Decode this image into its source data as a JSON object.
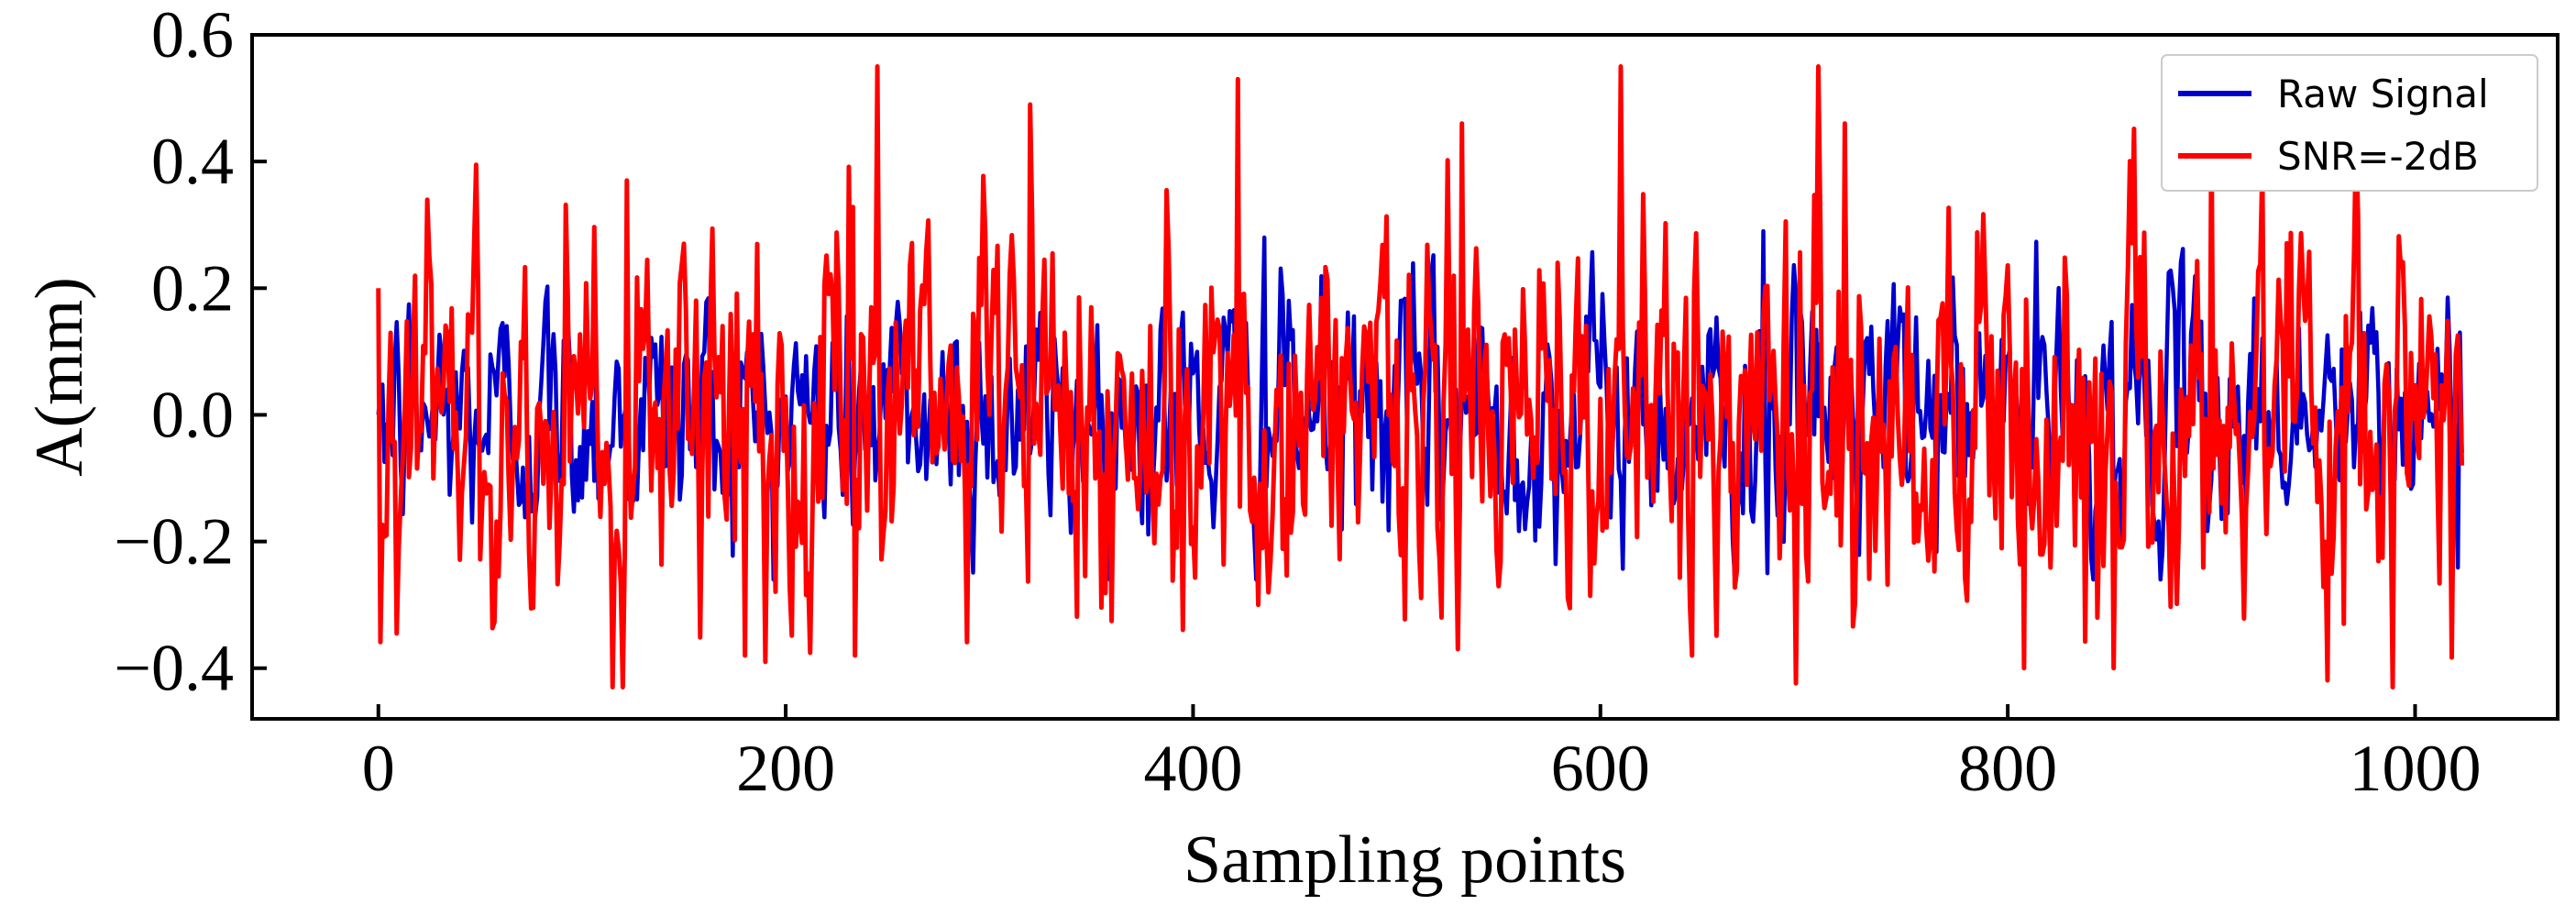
{
  "chart_data": {
    "type": "line",
    "title": "",
    "xlabel": "Sampling points",
    "ylabel": "A(mm)",
    "xlim": [
      -62,
      1070
    ],
    "ylim": [
      -0.48,
      0.6
    ],
    "x_ticks": [
      0,
      200,
      400,
      600,
      800,
      1000
    ],
    "x_tick_labels": [
      "0",
      "200",
      "400",
      "600",
      "800",
      "1000"
    ],
    "y_ticks": [
      -0.4,
      -0.2,
      0.0,
      0.2,
      0.4,
      0.6
    ],
    "y_tick_labels": [
      "−0.4",
      "−0.2",
      "0.0",
      "0.2",
      "0.4",
      "0.6"
    ],
    "ticks_direction": "in",
    "grid": false,
    "legend_position": "top-right",
    "series": [
      {
        "name": "Raw Signal",
        "color": "#0000cc",
        "n_points": 1024,
        "approx_range": [
          -0.26,
          0.3
        ],
        "notable_points": [
          [
            0,
            0.0
          ],
          [
            435,
            0.28
          ],
          [
            680,
            0.29
          ],
          [
            682,
            -0.25
          ],
          [
            1022,
            0.13
          ],
          [
            1023,
            -0.06
          ]
        ]
      },
      {
        "name": "SNR=-2dB",
        "color": "#ff0000",
        "n_points": 1024,
        "approx_range": [
          -0.43,
          0.55
        ],
        "notable_points": [
          [
            0,
            0.2
          ],
          [
            120,
            -0.43
          ],
          [
            122,
            0.37
          ],
          [
            180,
            -0.38
          ],
          [
            190,
            -0.39
          ],
          [
            234,
            -0.38
          ],
          [
            245,
            0.55
          ],
          [
            320,
            0.49
          ],
          [
            422,
            0.53
          ],
          [
            432,
            -0.3
          ],
          [
            530,
            -0.37
          ],
          [
            532,
            0.46
          ],
          [
            645,
            -0.38
          ],
          [
            720,
            0.46
          ],
          [
            808,
            -0.4
          ],
          [
            852,
            -0.4
          ],
          [
            900,
            0.47
          ],
          [
            965,
            -0.33
          ],
          [
            1023,
            -0.08
          ]
        ]
      }
    ]
  }
}
